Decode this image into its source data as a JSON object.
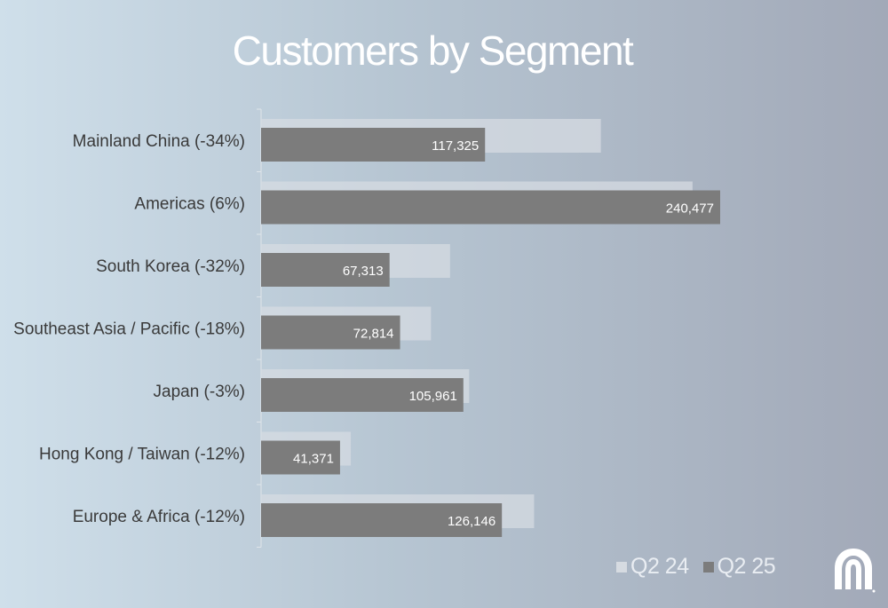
{
  "chart_data": {
    "type": "bar",
    "orientation": "horizontal",
    "title": "Customers by Segment",
    "categories": [
      "Mainland China (-34%)",
      "Americas (6%)",
      "South Korea (-32%)",
      "Southeast Asia / Pacific (-18%)",
      "Japan (-3%)",
      "Hong Kong / Taiwan (-12%)",
      "Europe & Africa (-12%)"
    ],
    "series": [
      {
        "name": "Q2 24",
        "color": "#d6dbe1",
        "values": [
          178000,
          226000,
          99000,
          89000,
          109000,
          47000,
          143000
        ]
      },
      {
        "name": "Q2 25",
        "color": "#7c7c7c",
        "values": [
          117325,
          240477,
          67313,
          72814,
          105961,
          41371,
          126146
        ],
        "labels": [
          "117,325",
          "240,477",
          "67,313",
          "72,814",
          "105,961",
          "41,371",
          "126,146"
        ]
      }
    ],
    "xlim": [
      0,
      270000
    ],
    "grid": false,
    "legend_position": "bottom-right"
  },
  "logo_icon": "nu-skin-logo-icon"
}
